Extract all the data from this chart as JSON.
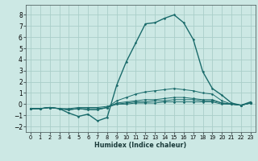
{
  "xlabel": "Humidex (Indice chaleur)",
  "ylabel": "",
  "bg_color": "#cce8e4",
  "grid_color": "#aacec9",
  "line_color": "#1a6b6b",
  "xlim": [
    -0.5,
    23.5
  ],
  "ylim": [
    -2.5,
    8.9
  ],
  "xticks": [
    0,
    1,
    2,
    3,
    4,
    5,
    6,
    7,
    8,
    9,
    10,
    11,
    12,
    13,
    14,
    15,
    16,
    17,
    18,
    19,
    20,
    21,
    22,
    23
  ],
  "yticks": [
    -2,
    -1,
    0,
    1,
    2,
    3,
    4,
    5,
    6,
    7,
    8
  ],
  "series": [
    {
      "x": [
        0,
        1,
        2,
        3,
        4,
        5,
        6,
        7,
        8,
        9,
        10,
        11,
        12,
        13,
        14,
        15,
        16,
        17,
        18,
        19,
        20,
        21,
        22,
        23
      ],
      "y": [
        -0.4,
        -0.4,
        -0.3,
        -0.4,
        -0.8,
        -1.1,
        -0.9,
        -1.5,
        -1.2,
        1.7,
        3.8,
        5.5,
        7.2,
        7.3,
        7.7,
        8.0,
        7.3,
        5.8,
        2.9,
        1.4,
        0.8,
        0.1,
        -0.1,
        0.2
      ]
    },
    {
      "x": [
        0,
        1,
        2,
        3,
        4,
        5,
        6,
        7,
        8,
        9,
        10,
        11,
        12,
        13,
        14,
        15,
        16,
        17,
        18,
        19,
        20,
        21,
        22,
        23
      ],
      "y": [
        -0.4,
        -0.4,
        -0.3,
        -0.4,
        -0.5,
        -0.4,
        -0.5,
        -0.5,
        -0.3,
        0.3,
        0.6,
        0.9,
        1.1,
        1.2,
        1.3,
        1.4,
        1.3,
        1.2,
        1.0,
        0.9,
        0.3,
        0.0,
        -0.1,
        0.1
      ]
    },
    {
      "x": [
        0,
        1,
        2,
        3,
        4,
        5,
        6,
        7,
        8,
        9,
        10,
        11,
        12,
        13,
        14,
        15,
        16,
        17,
        18,
        19,
        20,
        21,
        22,
        23
      ],
      "y": [
        -0.4,
        -0.4,
        -0.3,
        -0.4,
        -0.5,
        -0.4,
        -0.5,
        -0.5,
        -0.3,
        0.1,
        0.2,
        0.3,
        0.4,
        0.4,
        0.5,
        0.6,
        0.6,
        0.5,
        0.4,
        0.4,
        0.1,
        0.0,
        -0.1,
        0.1
      ]
    },
    {
      "x": [
        0,
        1,
        2,
        3,
        4,
        5,
        6,
        7,
        8,
        9,
        10,
        11,
        12,
        13,
        14,
        15,
        16,
        17,
        18,
        19,
        20,
        21,
        22,
        23
      ],
      "y": [
        -0.4,
        -0.4,
        -0.3,
        -0.4,
        -0.5,
        -0.4,
        -0.4,
        -0.4,
        -0.3,
        0.0,
        0.1,
        0.2,
        0.2,
        0.3,
        0.3,
        0.4,
        0.4,
        0.4,
        0.3,
        0.3,
        0.1,
        0.0,
        -0.1,
        0.1
      ]
    },
    {
      "x": [
        0,
        1,
        2,
        3,
        4,
        5,
        6,
        7,
        8,
        9,
        10,
        11,
        12,
        13,
        14,
        15,
        16,
        17,
        18,
        19,
        20,
        21,
        22,
        23
      ],
      "y": [
        -0.4,
        -0.4,
        -0.3,
        -0.4,
        -0.4,
        -0.3,
        -0.3,
        -0.3,
        -0.2,
        0.0,
        0.0,
        0.1,
        0.1,
        0.1,
        0.2,
        0.2,
        0.2,
        0.2,
        0.2,
        0.2,
        0.0,
        0.0,
        -0.1,
        0.1
      ]
    }
  ]
}
